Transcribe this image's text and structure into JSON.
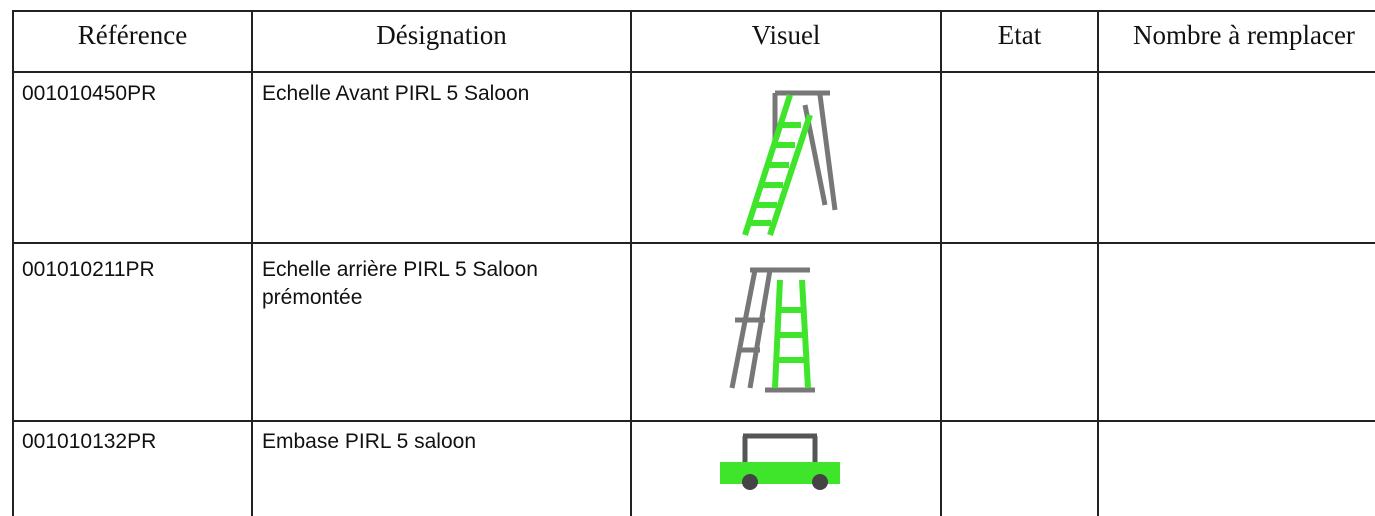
{
  "table": {
    "header": [
      "Référence",
      "Désignation",
      "Visuel",
      "Etat",
      "Nombre à remplacer"
    ],
    "rows": [
      {
        "reference": "001010450PR",
        "designation": "Echelle Avant PIRL 5 Saloon"
      },
      {
        "reference": "001010211PR",
        "designation": "Echelle arrière PIRL 5 Saloon prémontée"
      },
      {
        "reference": "001010132PR",
        "designation": "Embase PIRL 5 saloon"
      }
    ]
  }
}
